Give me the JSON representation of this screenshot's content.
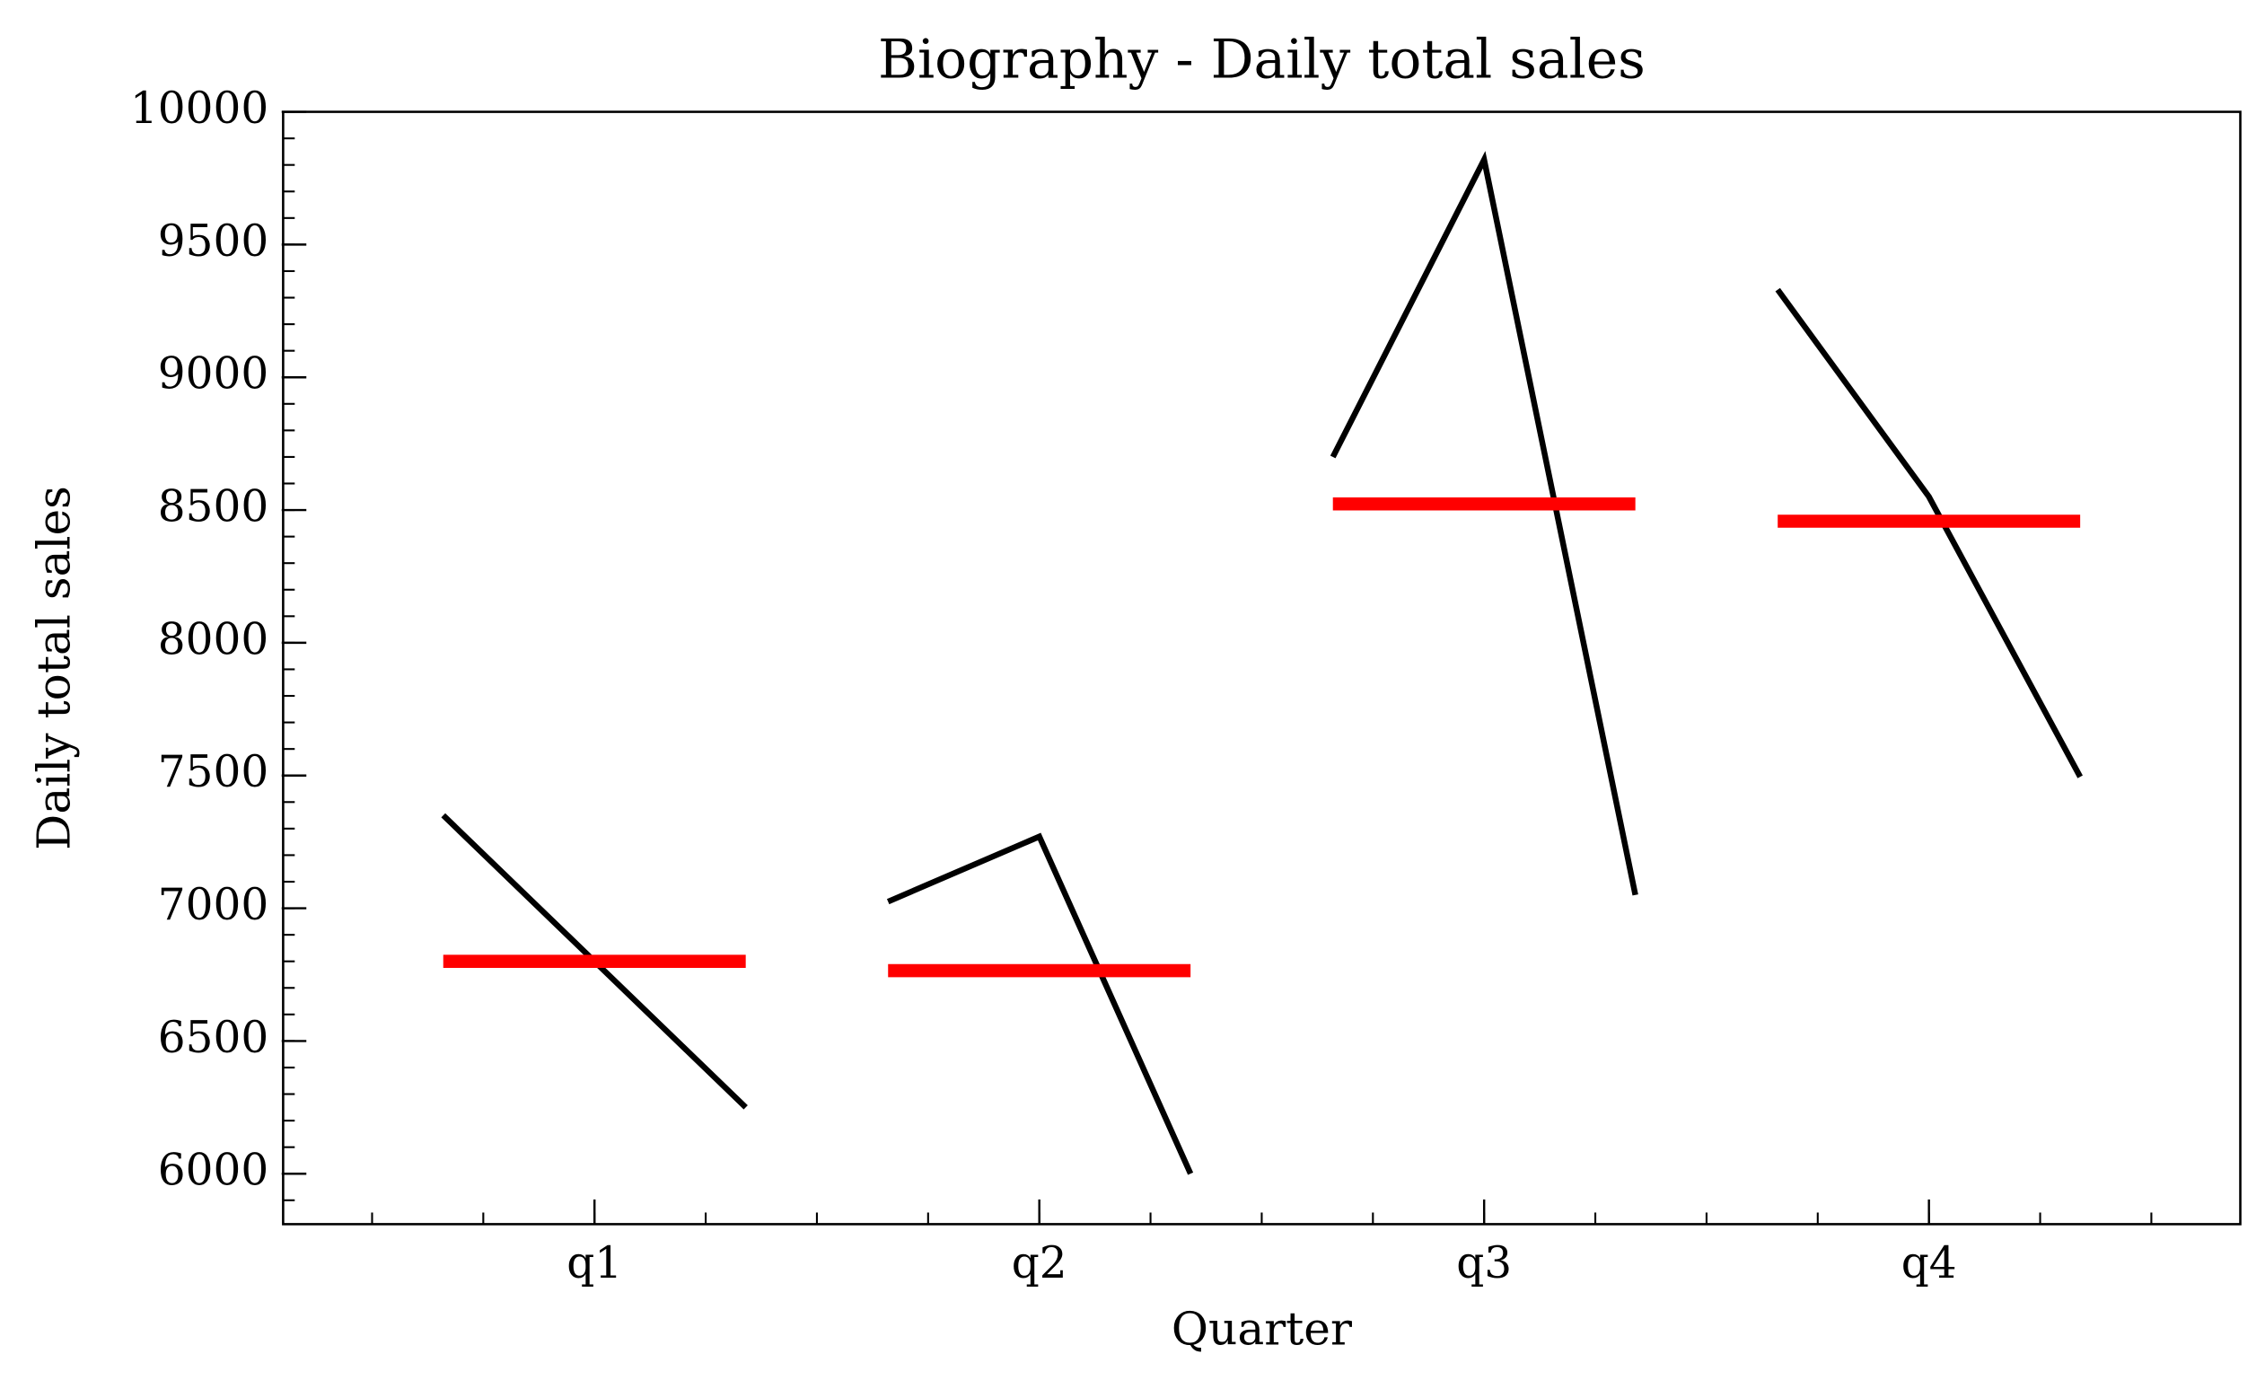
{
  "chart_data": {
    "type": "quarter_plot",
    "title": "Biography - Daily total sales",
    "x_label": "Quarter",
    "y_label": "Daily total sales",
    "categories": [
      "q1",
      "q2",
      "q3",
      "q4"
    ],
    "values": [
      [
        7350,
        6800,
        6250
      ],
      [
        7025,
        7270,
        6000
      ],
      [
        8700,
        9820,
        7050
      ],
      [
        9330,
        8550,
        7495
      ]
    ],
    "means": [
      6800,
      6765,
      8523,
      8458
    ],
    "color": "#000000",
    "mean_color": "#ff0000",
    "xlim": [
      -0.7,
      3.7
    ],
    "ylim": [
      5810,
      10000
    ],
    "yticks": [
      6000,
      6500,
      7000,
      7500,
      8000,
      8500,
      9000,
      9500,
      10000
    ],
    "y_minor_step": 100,
    "x_minor_step": 0.25
  }
}
